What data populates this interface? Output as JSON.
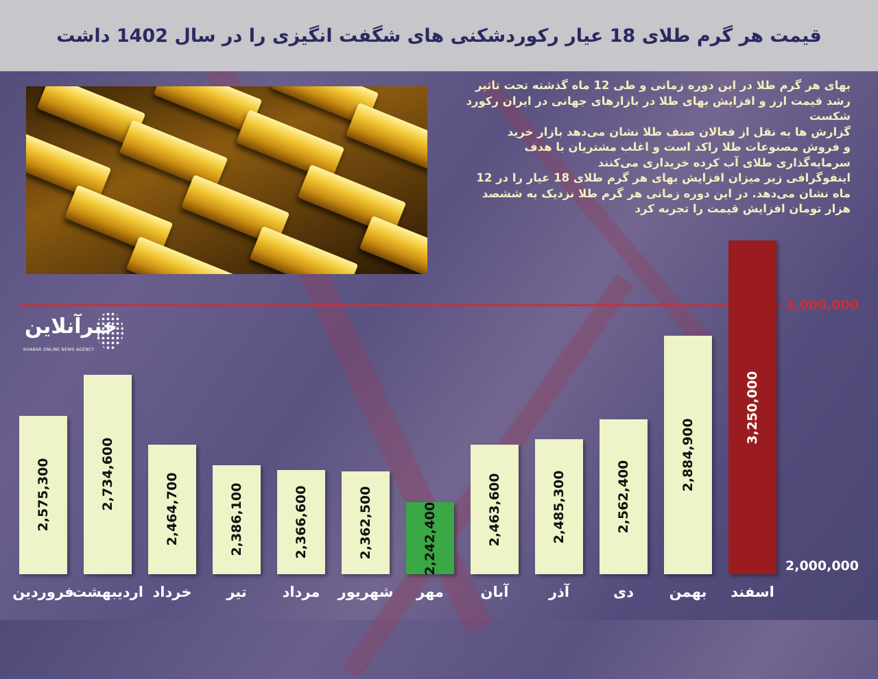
{
  "title": "قیمت هر گرم طلای 18 عیار رکوردشکنی های شگفت انگیزی را در سال 1402 داشت",
  "description": "بهای هر گرم طلا در این دوره زمانی و طی 12 ماه گذشته تحت تاثیر\nرشد قیمت ارز و افزایش بهای طلا در بازارهای جهانی در ایران رکورد\nشکست\nگزارش ها به نقل از فعالان صنف طلا نشان می‌دهد بازار خرید\nو فروش مصنوعات طلا راکد است و اغلب مشتریان با هدف\nسرمایه‌گذاری طلای آب کرده خریداری می‌کنند\nاینفوگرافی زیر میزان افزایش بهای هر گرم طلای 18 عیار را در 12\nماه نشان می‌دهد. در این دوره زمانی هر گرم طلا نزدیک به ششصد\nهزار تومان افزایش قیمت را تجربه کرد",
  "logo": {
    "name": "خبرآنلاین",
    "tagline": "KHABAR ONLINE NEWS AGENCY"
  },
  "colors": {
    "bar_default": "#eef3c8",
    "bar_min": "#3aa845",
    "bar_max": "#9b1c1f",
    "ref_line": "#c8303a",
    "title_text": "#2a2a5f"
  },
  "chart_data": {
    "type": "bar",
    "title": "قیمت هر گرم طلای 18 عیار رکوردشکنی های شگفت انگیزی را در سال 1402 داشت",
    "categories": [
      "فروردین",
      "اردیبهشت",
      "خرداد",
      "تیر",
      "مرداد",
      "شهریور",
      "مهر",
      "آبان",
      "آذر",
      "دی",
      "بهمن",
      "اسفند"
    ],
    "values": [
      2575300,
      2734600,
      2464700,
      2386100,
      2366600,
      2362500,
      2242400,
      2463600,
      2485300,
      2562400,
      2884900,
      3250000
    ],
    "value_labels": [
      "2,575,300",
      "2,734,600",
      "2,464,700",
      "2,386,100",
      "2,366,600",
      "2,362,500",
      "2,242,400",
      "2,463,600",
      "2,485,300",
      "2,562,400",
      "2,884,900",
      "3,250,000"
    ],
    "highlight": {
      "min_index": 6,
      "max_index": 11
    },
    "y_ticks": [
      {
        "value": 2000000,
        "label": "2,000,000"
      },
      {
        "value": 3000000,
        "label": "3,000,000"
      }
    ],
    "reference_line": 3000000,
    "ylim": [
      2000000,
      3250000
    ],
    "grid": false,
    "xlabel": "",
    "ylabel": ""
  }
}
